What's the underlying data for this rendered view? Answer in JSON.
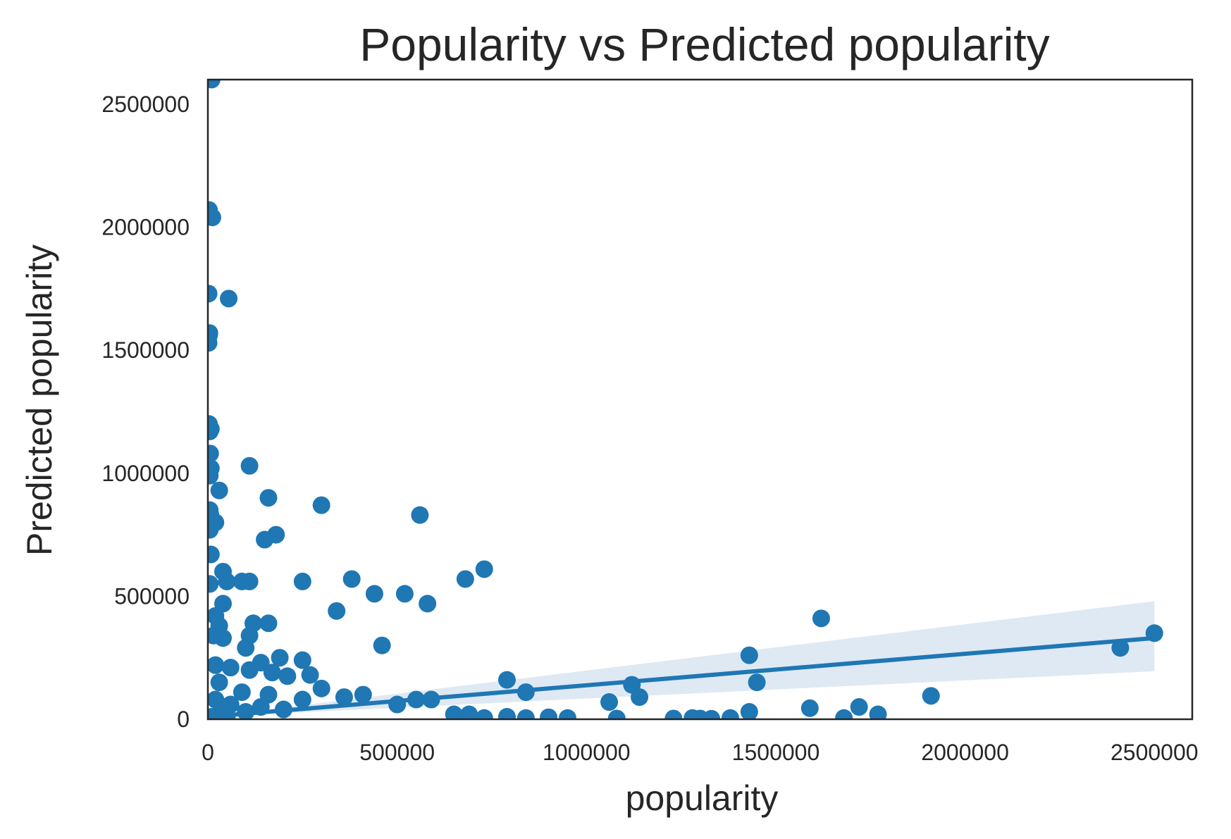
{
  "chart_data": {
    "type": "scatter",
    "title": "Popularity vs Predicted popularity",
    "xlabel": "popularity",
    "ylabel": "Predicted popularity",
    "xlim": [
      0,
      2600000
    ],
    "ylim": [
      0,
      2600000
    ],
    "xticks": [
      "0",
      "500000",
      "1000000",
      "1500000",
      "2000000",
      "2500000"
    ],
    "yticks": [
      "0",
      "500000",
      "1000000",
      "1500000",
      "2000000",
      "2500000"
    ],
    "grid": false,
    "legend": "none",
    "colors": {
      "points": "#1f77b4",
      "fit_line": "#1f77b4",
      "ci_band": "#dce8f3",
      "frame": "#262626"
    },
    "regression": {
      "x": [
        0,
        2500000
      ],
      "y": [
        10000,
        330000
      ],
      "ci_upper_end": 480000,
      "ci_lower_end": 195000
    },
    "points": [
      [
        10000,
        2600000
      ],
      [
        3000,
        2070000
      ],
      [
        12000,
        2040000
      ],
      [
        2000,
        1730000
      ],
      [
        55000,
        1710000
      ],
      [
        4000,
        1570000
      ],
      [
        3000,
        1560000
      ],
      [
        2000,
        1530000
      ],
      [
        3000,
        1200000
      ],
      [
        8000,
        1180000
      ],
      [
        5000,
        1170000
      ],
      [
        6000,
        1080000
      ],
      [
        110000,
        1030000
      ],
      [
        8000,
        1020000
      ],
      [
        5000,
        990000
      ],
      [
        30000,
        930000
      ],
      [
        160000,
        900000
      ],
      [
        300000,
        870000
      ],
      [
        5000,
        850000
      ],
      [
        7000,
        830000
      ],
      [
        560000,
        830000
      ],
      [
        20000,
        800000
      ],
      [
        5000,
        770000
      ],
      [
        180000,
        750000
      ],
      [
        150000,
        730000
      ],
      [
        8000,
        670000
      ],
      [
        730000,
        610000
      ],
      [
        40000,
        600000
      ],
      [
        680000,
        570000
      ],
      [
        380000,
        570000
      ],
      [
        250000,
        560000
      ],
      [
        90000,
        560000
      ],
      [
        110000,
        560000
      ],
      [
        50000,
        560000
      ],
      [
        5000,
        550000
      ],
      [
        440000,
        510000
      ],
      [
        520000,
        510000
      ],
      [
        580000,
        470000
      ],
      [
        40000,
        470000
      ],
      [
        340000,
        440000
      ],
      [
        20000,
        420000
      ],
      [
        1620000,
        410000
      ],
      [
        120000,
        390000
      ],
      [
        160000,
        390000
      ],
      [
        30000,
        380000
      ],
      [
        2500000,
        350000
      ],
      [
        15000,
        340000
      ],
      [
        110000,
        340000
      ],
      [
        40000,
        330000
      ],
      [
        460000,
        300000
      ],
      [
        2410000,
        290000
      ],
      [
        100000,
        290000
      ],
      [
        1430000,
        260000
      ],
      [
        190000,
        250000
      ],
      [
        250000,
        240000
      ],
      [
        140000,
        230000
      ],
      [
        20000,
        220000
      ],
      [
        60000,
        210000
      ],
      [
        110000,
        200000
      ],
      [
        170000,
        190000
      ],
      [
        270000,
        180000
      ],
      [
        210000,
        175000
      ],
      [
        790000,
        160000
      ],
      [
        1450000,
        150000
      ],
      [
        30000,
        150000
      ],
      [
        1120000,
        140000
      ],
      [
        300000,
        125000
      ],
      [
        840000,
        110000
      ],
      [
        90000,
        110000
      ],
      [
        160000,
        100000
      ],
      [
        410000,
        100000
      ],
      [
        1910000,
        95000
      ],
      [
        1140000,
        90000
      ],
      [
        360000,
        90000
      ],
      [
        1060000,
        70000
      ],
      [
        550000,
        80000
      ],
      [
        590000,
        80000
      ],
      [
        20000,
        80000
      ],
      [
        250000,
        80000
      ],
      [
        500000,
        60000
      ],
      [
        1720000,
        50000
      ],
      [
        1590000,
        45000
      ],
      [
        1430000,
        30000
      ],
      [
        650000,
        20000
      ],
      [
        1770000,
        20000
      ],
      [
        690000,
        20000
      ],
      [
        790000,
        10000
      ],
      [
        840000,
        5000
      ],
      [
        900000,
        8000
      ],
      [
        950000,
        5000
      ],
      [
        1080000,
        3000
      ],
      [
        1230000,
        3000
      ],
      [
        1280000,
        5000
      ],
      [
        1300000,
        3000
      ],
      [
        1330000,
        2000
      ],
      [
        1380000,
        5000
      ],
      [
        1680000,
        5000
      ],
      [
        730000,
        5000
      ],
      [
        60000,
        60000
      ],
      [
        140000,
        50000
      ],
      [
        200000,
        40000
      ],
      [
        100000,
        30000
      ],
      [
        30000,
        20000
      ],
      [
        10000,
        10000
      ],
      [
        50000,
        5000
      ]
    ]
  }
}
